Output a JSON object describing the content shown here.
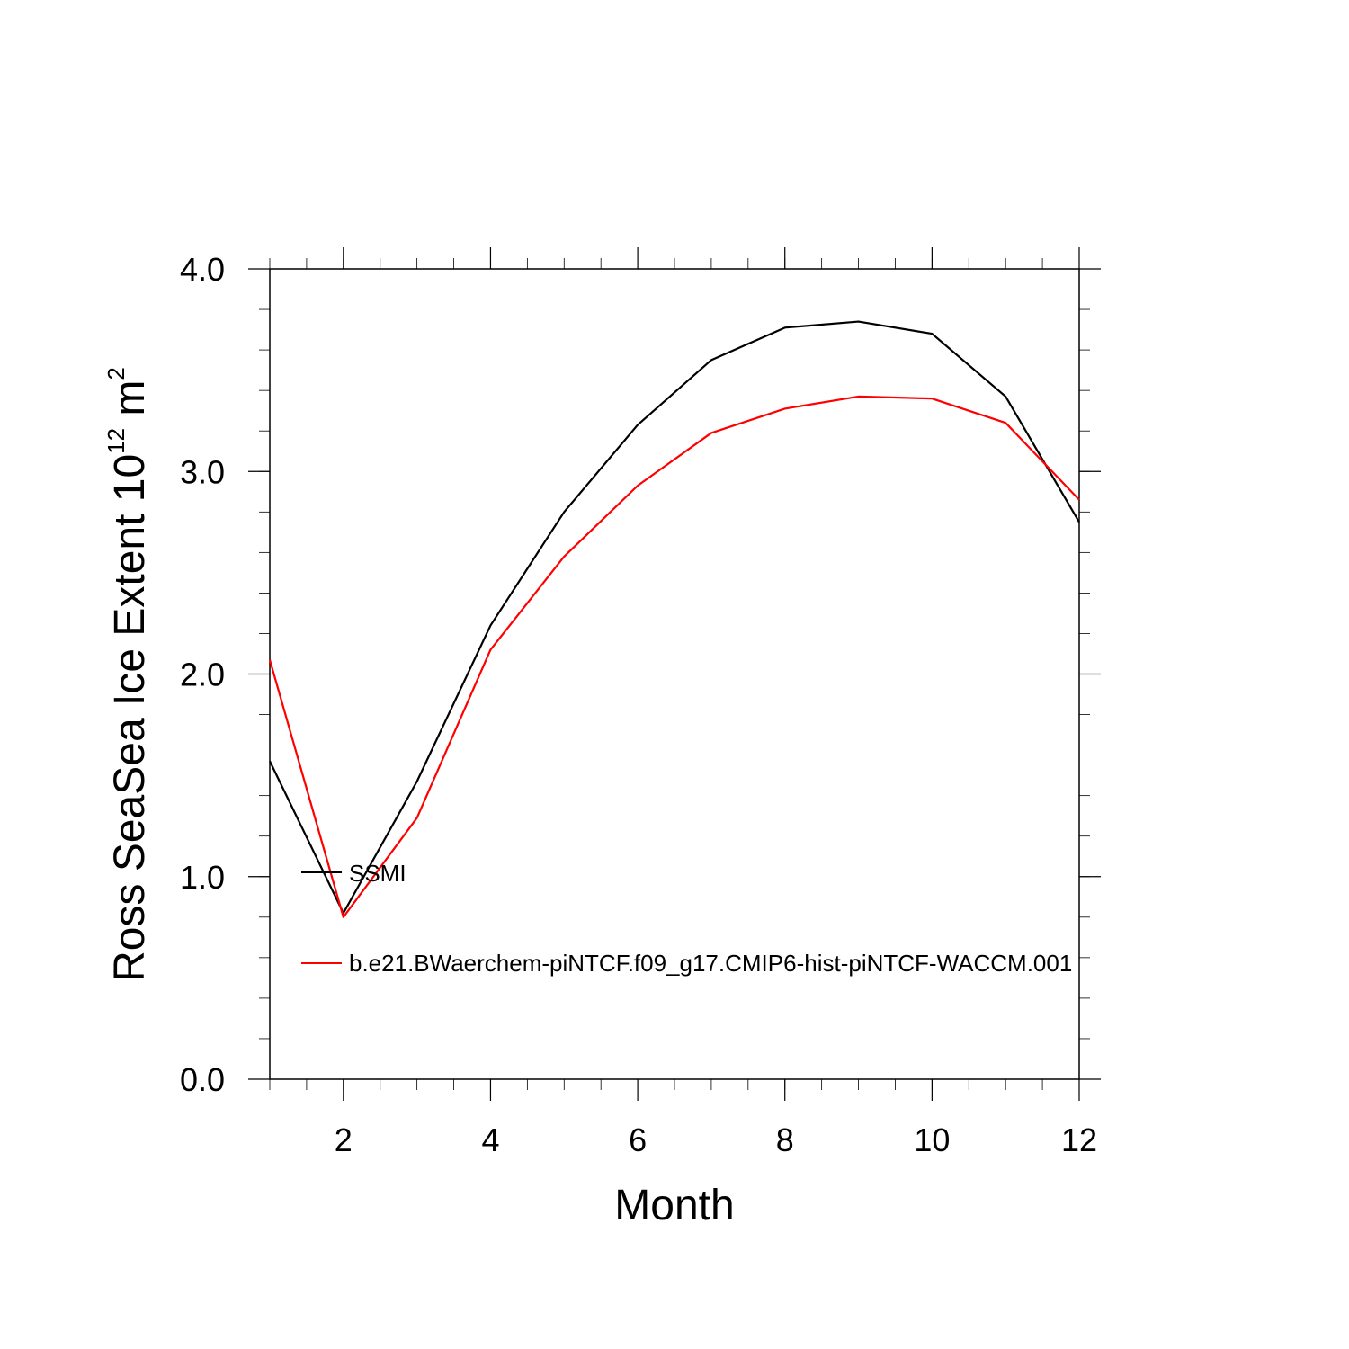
{
  "chart_data": {
    "type": "line",
    "title": "",
    "xlabel": "Month",
    "ylabel_main": "Ross SeaSea Ice Extent 10",
    "ylabel_exp": "12",
    "ylabel_unit": " m",
    "ylabel_unit_exp": "2",
    "xlim": [
      1,
      12
    ],
    "ylim": [
      0.0,
      4.0
    ],
    "x_ticks": [
      2,
      4,
      6,
      8,
      10,
      12
    ],
    "x_tick_labels": [
      "2",
      "4",
      "6",
      "8",
      "10",
      "12"
    ],
    "y_ticks": [
      0.0,
      1.0,
      2.0,
      3.0,
      4.0
    ],
    "y_tick_labels": [
      "0.0",
      "1.0",
      "2.0",
      "3.0",
      "4.0"
    ],
    "grid": false,
    "legend_position": "inside-lower-left",
    "x": [
      1,
      2,
      3,
      4,
      5,
      6,
      7,
      8,
      9,
      10,
      11,
      12
    ],
    "series": [
      {
        "name": "SSMI",
        "color": "#000000",
        "values": [
          1.57,
          0.82,
          1.47,
          2.24,
          2.8,
          3.23,
          3.55,
          3.71,
          3.74,
          3.68,
          3.37,
          2.75
        ]
      },
      {
        "name": "b.e21.BWaerchem-piNTCF.f09_g17.CMIP6-hist-piNTCF-WACCM.001",
        "color": "#ff0000",
        "values": [
          2.07,
          0.8,
          1.29,
          2.12,
          2.58,
          2.93,
          3.19,
          3.31,
          3.37,
          3.36,
          3.24,
          2.86
        ]
      }
    ]
  }
}
